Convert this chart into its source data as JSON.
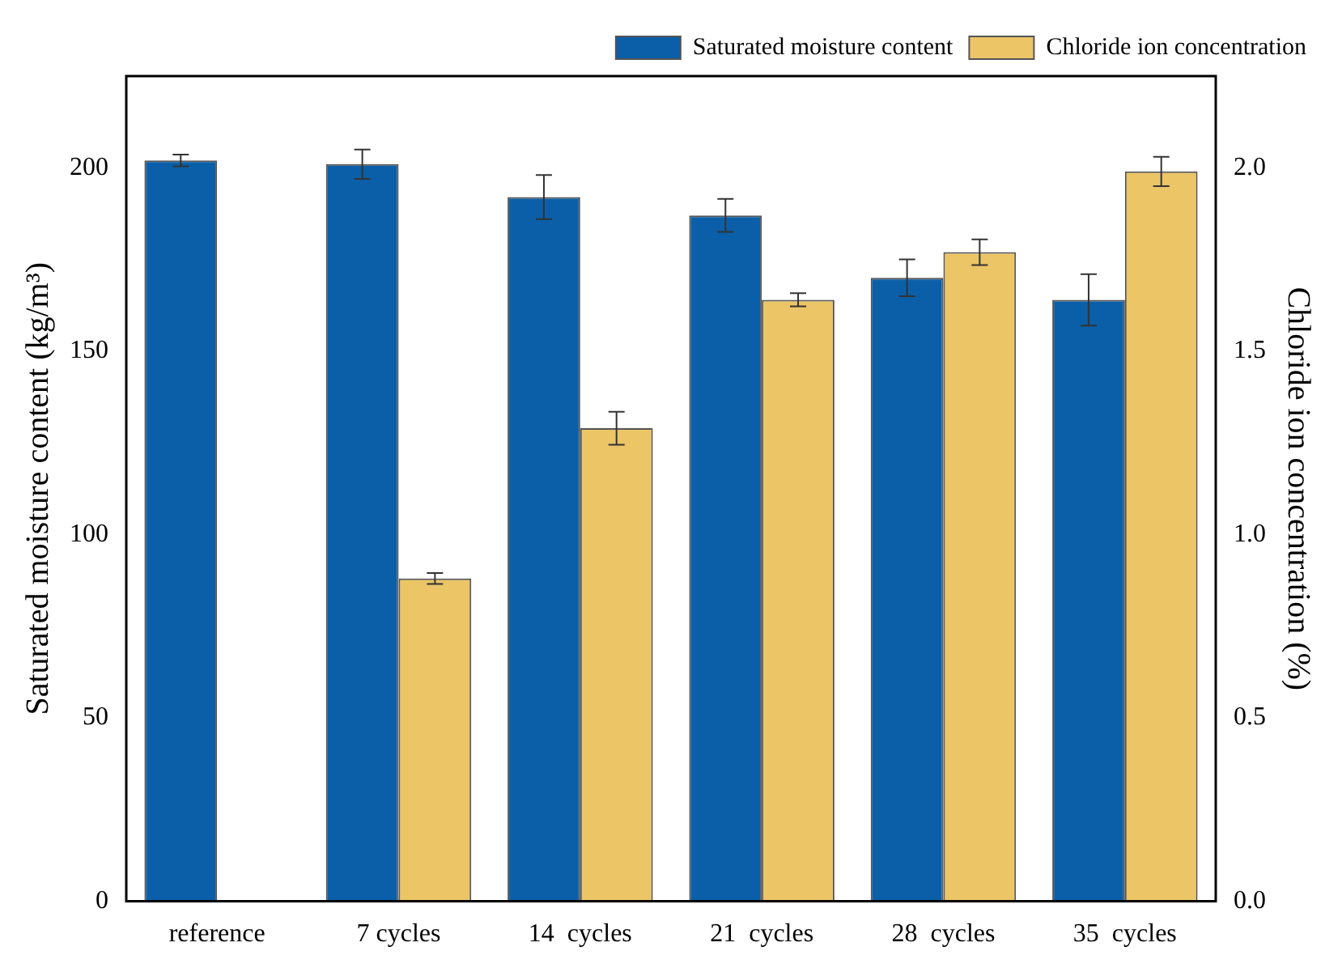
{
  "chart_data": {
    "type": "bar",
    "categories": [
      "reference",
      "7 cycles",
      "14  cycles",
      "21  cycles",
      "28  cycles",
      "35  cycles"
    ],
    "ylabel": "Saturated moisture content (kg/m³)",
    "y2label": "Chloride ion concentration (%)",
    "ylim": [
      0,
      225
    ],
    "yticks": [
      0,
      50,
      100,
      150,
      200
    ],
    "y2lim": [
      0,
      2.25
    ],
    "y2ticks": [
      {
        "value": 0,
        "label": "0.0"
      },
      {
        "value": 0.5,
        "label": "0.5"
      },
      {
        "value": 1,
        "label": "1.0"
      },
      {
        "value": 1.5,
        "label": "1.5"
      },
      {
        "value": 2,
        "label": "2.0"
      }
    ],
    "series": [
      {
        "name": "Saturated moisture content",
        "color": "#0a5fa8",
        "values": [
          202,
          201,
          192,
          187,
          170,
          164
        ],
        "errors": [
          1.6,
          4,
          6,
          4.5,
          5,
          7
        ]
      },
      {
        "name": "Chloride ion concentration",
        "color": "#ebc566",
        "axis": "y2",
        "values": [
          null,
          0.88,
          1.29,
          1.64,
          1.77,
          1.99
        ],
        "errors": [
          null,
          0.015,
          0.045,
          0.018,
          0.035,
          0.04
        ]
      }
    ],
    "legend": "top right",
    "grid": false
  }
}
